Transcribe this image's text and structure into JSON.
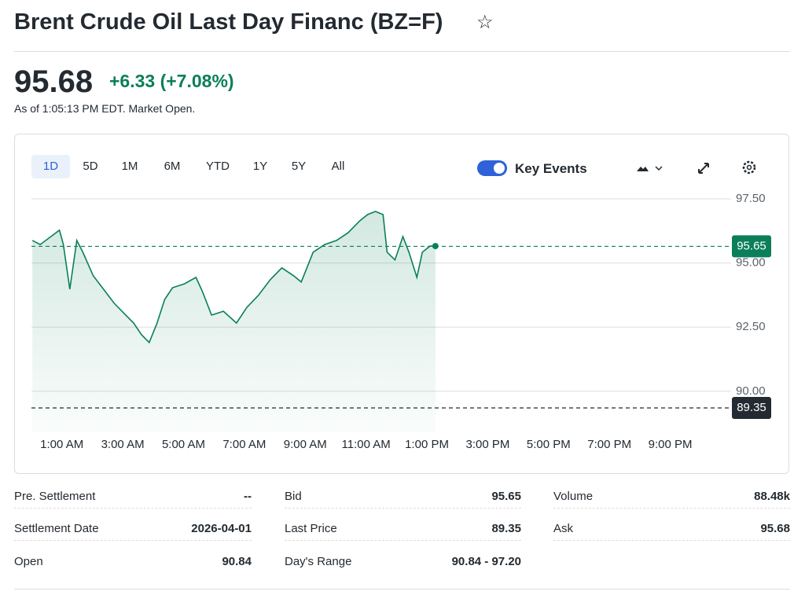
{
  "header": {
    "title": "Brent Crude Oil Last Day Financ (BZ=F)"
  },
  "quote": {
    "price": "95.68",
    "change": "+6.33",
    "change_percent": "(+7.08%)",
    "as_of": "As of 1:05:13 PM EDT. Market Open."
  },
  "toolbar": {
    "ranges": [
      "1D",
      "5D",
      "1M",
      "6M",
      "YTD",
      "1Y",
      "5Y",
      "All"
    ],
    "key_events": "Key Events"
  },
  "chart_data": {
    "type": "line",
    "color": "#0a7f5a",
    "x": [
      0.03,
      0.29,
      0.92,
      1.05,
      1.26,
      1.49,
      1.69,
      2.03,
      2.33,
      2.72,
      3.1,
      3.36,
      3.62,
      3.87,
      4.13,
      4.38,
      4.64,
      5.03,
      5.41,
      5.62,
      5.92,
      6.31,
      6.74,
      7.08,
      7.46,
      7.85,
      8.23,
      8.62,
      8.87,
      9.26,
      9.64,
      10.03,
      10.41,
      10.79,
      11.05,
      11.31,
      11.56,
      11.69,
      11.95,
      12.21,
      12.41,
      12.67,
      12.85,
      13.1,
      13.28
    ],
    "values": [
      95.88,
      95.72,
      96.28,
      95.72,
      93.98,
      95.88,
      95.42,
      94.5,
      94.04,
      93.43,
      92.97,
      92.66,
      92.2,
      91.9,
      92.66,
      93.58,
      94.04,
      94.19,
      94.44,
      93.89,
      92.97,
      93.12,
      92.66,
      93.27,
      93.74,
      94.35,
      94.81,
      94.5,
      94.26,
      95.42,
      95.72,
      95.88,
      96.18,
      96.64,
      96.89,
      97.01,
      96.89,
      95.42,
      95.12,
      96.03,
      95.42,
      94.44,
      95.42,
      95.66,
      95.66
    ],
    "xlim": [
      0,
      23
    ],
    "ylim": [
      88.4,
      97.9
    ],
    "xticks": [
      {
        "value": 1,
        "label": "1:00 AM"
      },
      {
        "value": 3,
        "label": "3:00 AM"
      },
      {
        "value": 5,
        "label": "5:00 AM"
      },
      {
        "value": 7,
        "label": "7:00 AM"
      },
      {
        "value": 9,
        "label": "9:00 AM"
      },
      {
        "value": 11,
        "label": "11:00 AM"
      },
      {
        "value": 13,
        "label": "1:00 PM"
      },
      {
        "value": 15,
        "label": "3:00 PM"
      },
      {
        "value": 17,
        "label": "5:00 PM"
      },
      {
        "value": 19,
        "label": "7:00 PM"
      },
      {
        "value": 21,
        "label": "9:00 PM"
      }
    ],
    "yticks": [
      {
        "value": 90,
        "label": "90.00"
      },
      {
        "value": 92.5,
        "label": "92.50"
      },
      {
        "value": 95,
        "label": "95.00"
      },
      {
        "value": 97.5,
        "label": "97.50"
      }
    ],
    "grid": true,
    "reference_lines": [
      {
        "value": 95.65,
        "color": "#0a7f5a"
      },
      {
        "value": 89.35,
        "color": "#232a31"
      }
    ]
  },
  "stats": [
    [
      [
        "Pre. Settlement",
        "--"
      ],
      [
        "Settlement Date",
        "2026-04-01"
      ],
      [
        "Open",
        "90.84"
      ]
    ],
    [
      [
        "Bid",
        "95.65"
      ],
      [
        "Last Price",
        "89.35"
      ],
      [
        "Day's Range",
        "90.84 - 97.20"
      ]
    ],
    [
      [
        "Volume",
        "88.48k"
      ],
      [
        "Ask",
        "95.68"
      ]
    ]
  ]
}
